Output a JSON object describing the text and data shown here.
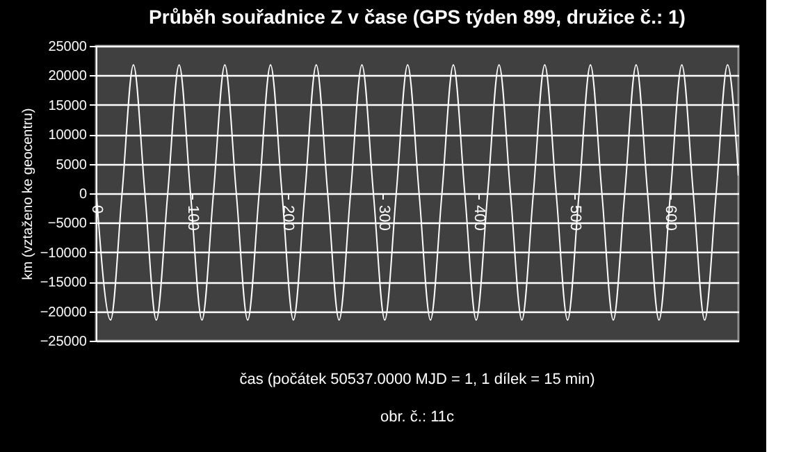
{
  "chart_data": {
    "type": "line",
    "title": "Průběh souřadnice Z v čase (GPS týden 899, družice č.: 1)",
    "xlabel": "čas (počátek 50537.0000 MJD = 1, 1 dílek = 15 min)",
    "ylabel": "km (vztaženo ke geocentru)",
    "annotations": [
      "obr. č.: 11c"
    ],
    "x": [
      0,
      15.3,
      27.3,
      39.2,
      51.2,
      63.1,
      75.1,
      87.0,
      98.9,
      110.9,
      122.9,
      134.8,
      146.8,
      158.7,
      170.7,
      182.6,
      194.6,
      206.5,
      218.5,
      230.4,
      242.4,
      254.3,
      266.3,
      278.2,
      290.2,
      302.1,
      314.1,
      326.0,
      338.0,
      349.9,
      361.9,
      373.8,
      385.8,
      397.7,
      409.7,
      421.6,
      433.6,
      445.5,
      457.5,
      469.4,
      481.4,
      493.3,
      505.3,
      517.2,
      529.2,
      541.1,
      553.1,
      565.0,
      577.0,
      588.9,
      600.9,
      612.8,
      624.8,
      636.7,
      648.7,
      660.6,
      672
    ],
    "series": [
      {
        "color": "#ffffff",
        "values": [
          1000,
          -21500,
          0,
          21800,
          0,
          -21500,
          0,
          21800,
          0,
          -21500,
          0,
          21800,
          0,
          -21500,
          0,
          21800,
          0,
          -21500,
          0,
          21800,
          0,
          -21500,
          0,
          21800,
          0,
          -21500,
          0,
          21800,
          0,
          -21500,
          0,
          21800,
          0,
          -21500,
          0,
          21800,
          0,
          -21500,
          0,
          21800,
          0,
          -21500,
          0,
          21800,
          0,
          -21500,
          0,
          21800,
          0,
          -21500,
          0,
          21800,
          0,
          -21500,
          0,
          21800,
          3000
        ]
      }
    ],
    "xlim": [
      0,
      672
    ],
    "xticks": [
      0,
      100,
      200,
      300,
      400,
      500,
      600
    ],
    "ylim": [
      -25000,
      25000
    ],
    "yticks": [
      -25000,
      -20000,
      -15000,
      -10000,
      -5000,
      0,
      5000,
      10000,
      15000,
      20000,
      25000
    ],
    "grid": "y",
    "marker": "none",
    "line_style": "solid"
  }
}
